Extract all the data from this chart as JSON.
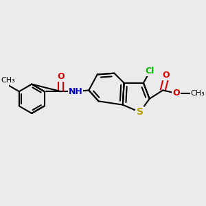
{
  "bg_color": "#ebebeb",
  "bond_color": "#000000",
  "lw": 1.5,
  "S_color": "#b8a000",
  "N_color": "#0000cc",
  "O_color": "#dd0000",
  "Cl_color": "#00bb00",
  "font_size": 9,
  "fig_size": [
    3.0,
    3.0
  ],
  "dpi": 100,
  "xlim": [
    -1.6,
    1.4
  ],
  "ylim": [
    -0.9,
    1.0
  ]
}
